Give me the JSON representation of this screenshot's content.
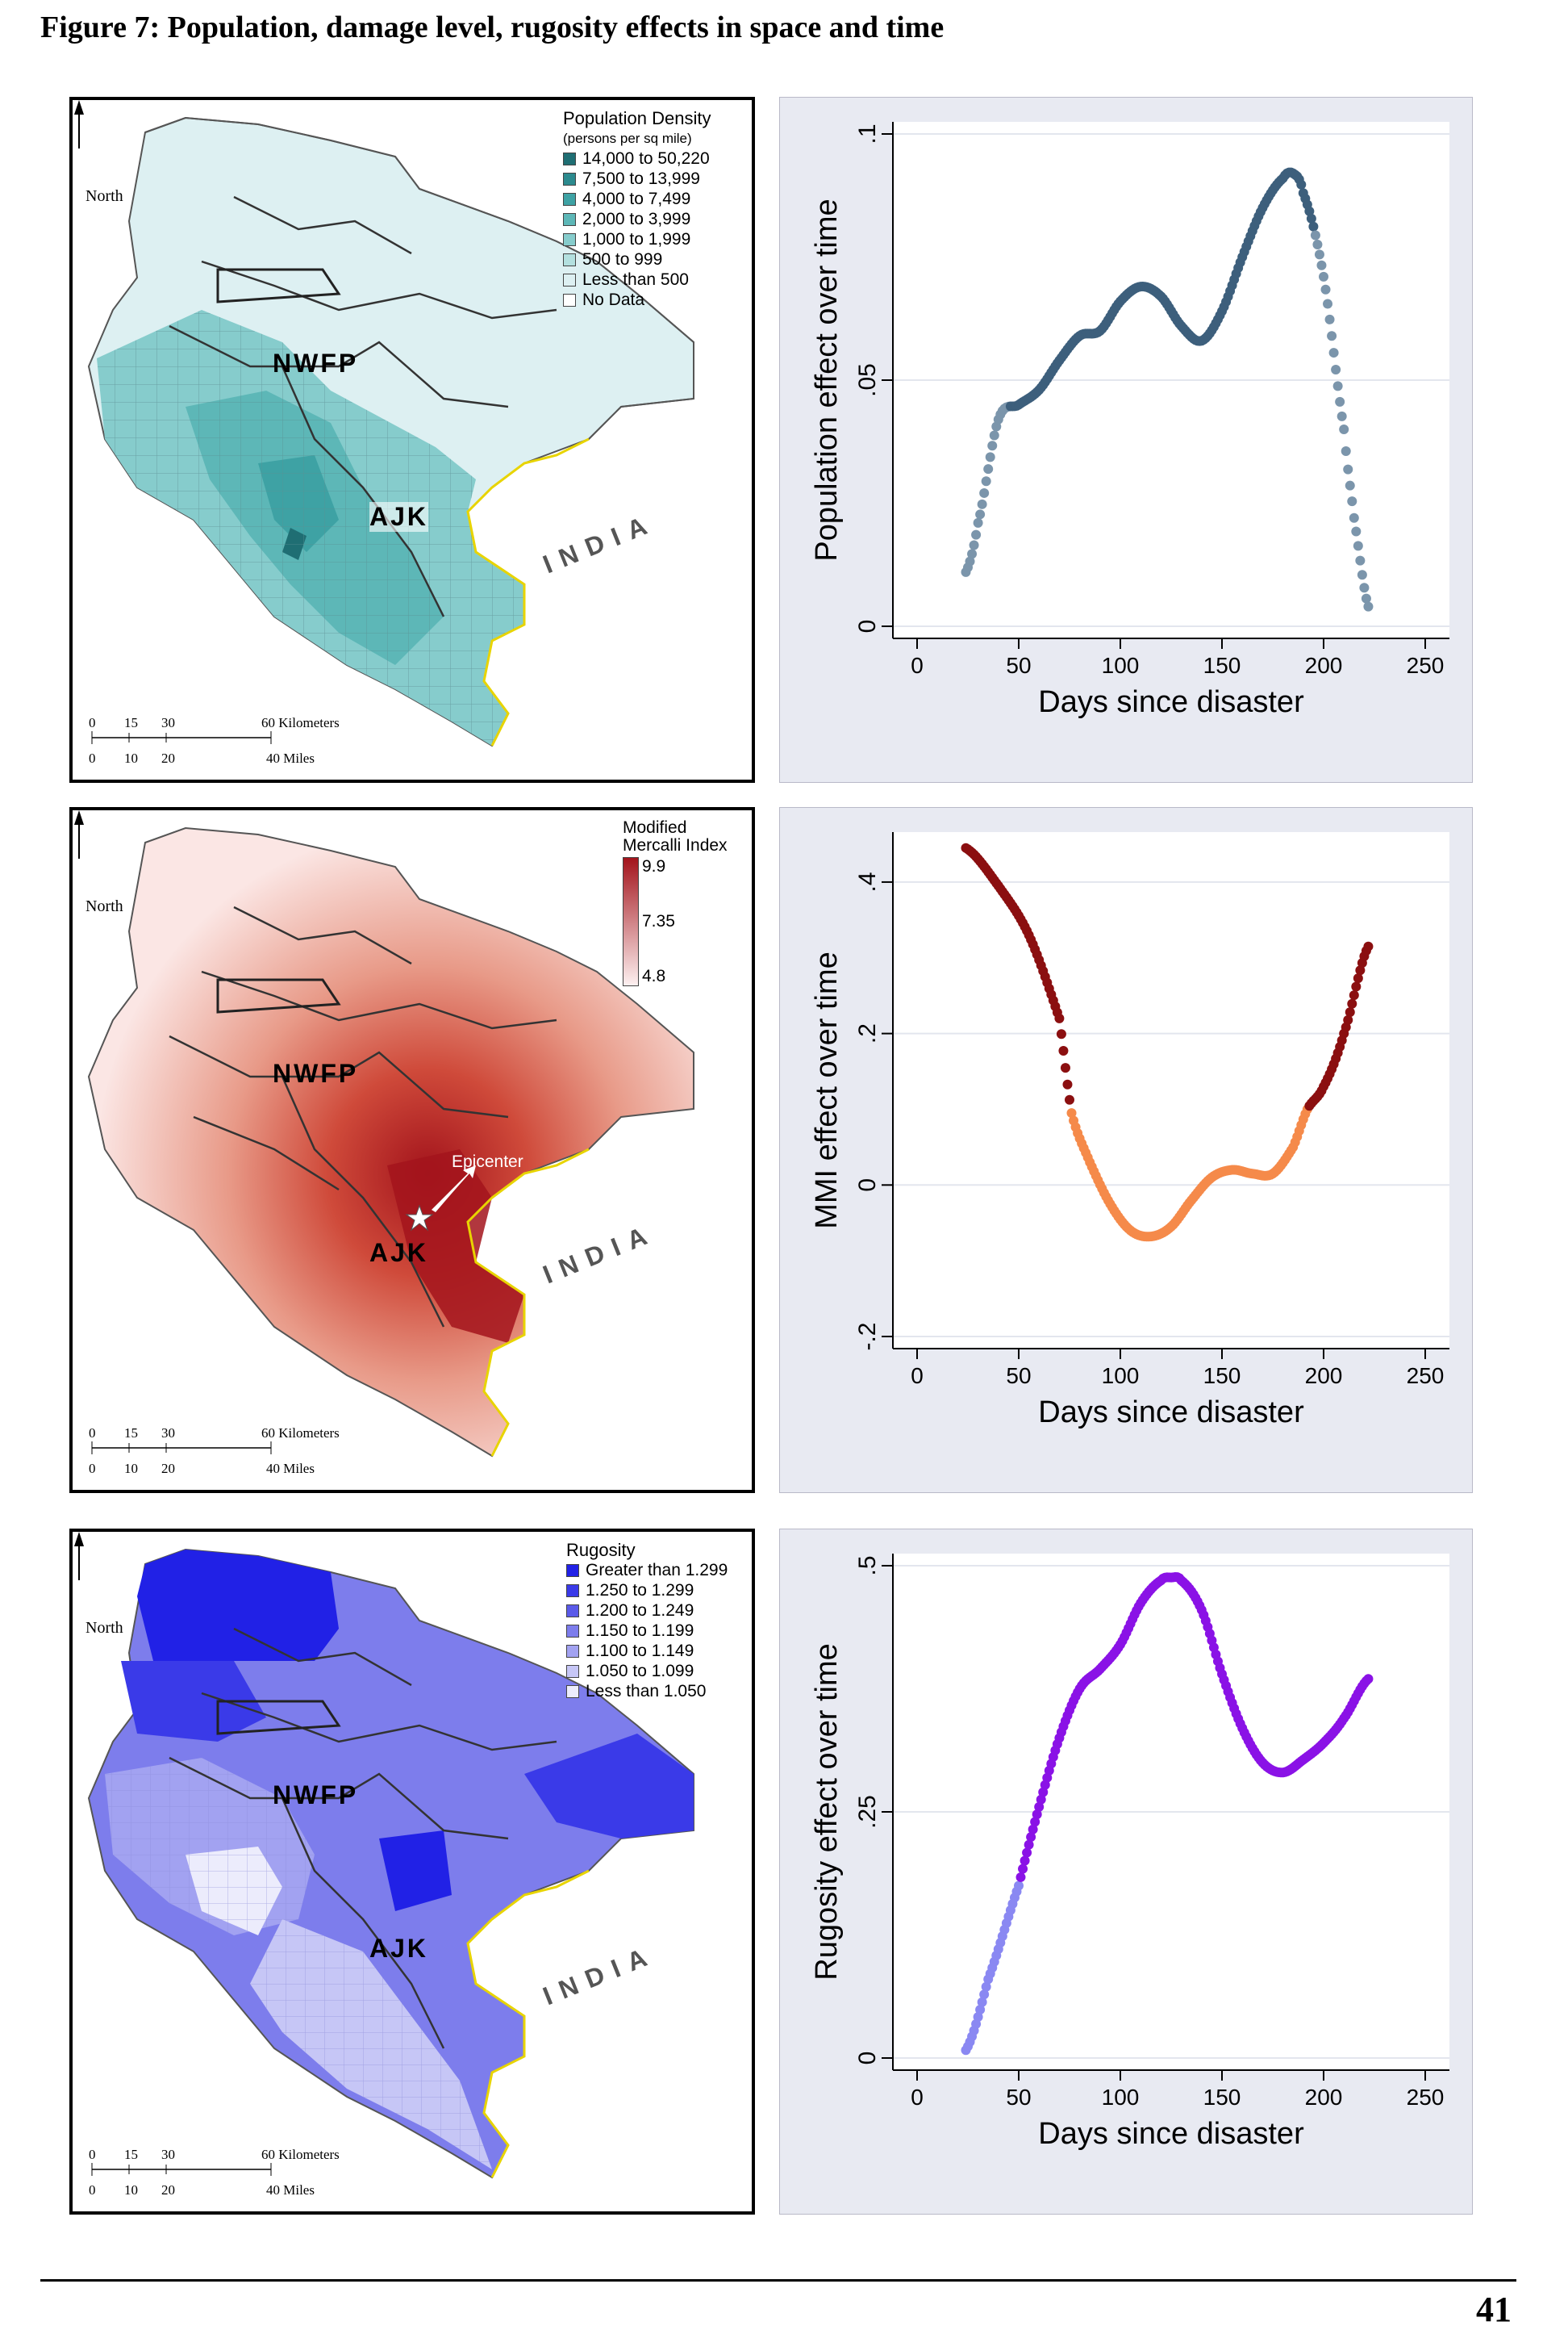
{
  "figure_title": "Figure 7: Population, damage level, rugosity effects in space and time",
  "page_number": "41",
  "maps": {
    "north_label": "North",
    "scale_km": [
      "0",
      "15",
      "30",
      "60 Kilometers"
    ],
    "scale_mi": [
      "0",
      "10",
      "20",
      "40 Miles"
    ],
    "region_labels": {
      "nwfp": "NWFP",
      "ajk": "AJK",
      "india": "INDIA"
    },
    "population": {
      "legend_title": "Population Density",
      "legend_subtitle": "(persons per sq mile)",
      "items": [
        {
          "label": "14,000 to 50,220",
          "color": "#1f6e73"
        },
        {
          "label": "7,500 to 13,999",
          "color": "#2c8a8e"
        },
        {
          "label": "4,000 to 7,499",
          "color": "#3ea2a4"
        },
        {
          "label": "2,000 to 3,999",
          "color": "#5db7b7"
        },
        {
          "label": "1,000 to 1,999",
          "color": "#86cccc"
        },
        {
          "label": "500 to 999",
          "color": "#b3e0df"
        },
        {
          "label": "Less than 500",
          "color": "#ddf0f2"
        },
        {
          "label": "No Data",
          "color": "#ffffff"
        }
      ]
    },
    "mmi": {
      "legend_title_1": "Modified",
      "legend_title_2": "Mercalli Index",
      "max_label": "9.9",
      "mid_label": "7.35",
      "min_label": "4.8",
      "epicenter_label": "Epicenter",
      "max_color": "#a3141c",
      "min_color": "#fdf0f0"
    },
    "rugosity": {
      "legend_title": "Rugosity",
      "items": [
        {
          "label": "Greater than 1.299",
          "color": "#2121e6"
        },
        {
          "label": "1.250 to 1.299",
          "color": "#3a3ae8"
        },
        {
          "label": "1.200 to 1.249",
          "color": "#5a5ae9"
        },
        {
          "label": "1.150 to 1.199",
          "color": "#7d7dec"
        },
        {
          "label": "1.100 to 1.149",
          "color": "#a2a2f1"
        },
        {
          "label": "1.050 to 1.099",
          "color": "#c6c6f6"
        },
        {
          "label": "Less than 1.050",
          "color": "#ececfc"
        }
      ]
    }
  },
  "chart_data": [
    {
      "type": "scatter",
      "xlabel": "Days since disaster",
      "ylabel": "Population effect over time",
      "xlim": [
        0,
        250
      ],
      "ylim": [
        0,
        0.1
      ],
      "xticks": [
        "0",
        "50",
        "100",
        "150",
        "200",
        "250"
      ],
      "yticks": [
        {
          "v": 0,
          "label": "0"
        },
        {
          "v": 0.05,
          "label": ".05"
        },
        {
          "v": 0.1,
          "label": ".1"
        }
      ],
      "grid": true,
      "colors": {
        "dark": "#3d5f7c",
        "light": "#7b95ab"
      },
      "x": [
        24,
        30,
        40,
        50,
        60,
        70,
        80,
        90,
        100,
        110,
        120,
        130,
        140,
        150,
        160,
        170,
        180,
        185,
        190,
        200,
        210,
        215,
        222
      ],
      "y": [
        0.011,
        0.021,
        0.042,
        0.045,
        0.048,
        0.054,
        0.059,
        0.06,
        0.066,
        0.069,
        0.067,
        0.061,
        0.058,
        0.064,
        0.075,
        0.085,
        0.091,
        0.092,
        0.088,
        0.071,
        0.04,
        0.022,
        0.004
      ],
      "light_ranges": [
        [
          24,
          45
        ],
        [
          196,
          222
        ]
      ]
    },
    {
      "type": "scatter",
      "xlabel": "Days since disaster",
      "ylabel": "MMI effect over time",
      "xlim": [
        0,
        250
      ],
      "ylim": [
        -0.2,
        0.45
      ],
      "xticks": [
        "0",
        "50",
        "100",
        "150",
        "200",
        "250"
      ],
      "yticks": [
        {
          "v": -0.2,
          "label": "-.2"
        },
        {
          "v": 0,
          "label": "0"
        },
        {
          "v": 0.2,
          "label": ".2"
        },
        {
          "v": 0.4,
          "label": ".4"
        }
      ],
      "grid": true,
      "colors": {
        "dark": "#8b0f10",
        "light": "#f58a4a"
      },
      "x": [
        24,
        40,
        55,
        70,
        76,
        85,
        95,
        105,
        115,
        125,
        135,
        145,
        155,
        165,
        175,
        185,
        192,
        200,
        210,
        222
      ],
      "y": [
        0.445,
        0.395,
        0.33,
        0.22,
        0.095,
        0.03,
        -0.025,
        -0.06,
        -0.068,
        -0.055,
        -0.02,
        0.01,
        0.02,
        0.015,
        0.015,
        0.05,
        0.1,
        0.13,
        0.2,
        0.315
      ],
      "light_ranges": [
        [
          76,
          192
        ]
      ]
    },
    {
      "type": "scatter",
      "xlabel": "Days since disaster",
      "ylabel": "Rugosity effect over time",
      "xlim": [
        0,
        250
      ],
      "ylim": [
        0,
        0.5
      ],
      "xticks": [
        "0",
        "50",
        "100",
        "150",
        "200",
        "250"
      ],
      "yticks": [
        {
          "v": 0,
          "label": "0"
        },
        {
          "v": 0.25,
          "label": ".25"
        },
        {
          "v": 0.5,
          "label": ".5"
        }
      ],
      "grid": true,
      "colors": {
        "dark": "#8a12e6",
        "light": "#8a88f2"
      },
      "x": [
        24,
        35,
        50,
        60,
        70,
        80,
        90,
        100,
        110,
        120,
        125,
        130,
        140,
        150,
        160,
        170,
        180,
        190,
        200,
        210,
        222
      ],
      "y": [
        0.008,
        0.08,
        0.175,
        0.255,
        0.325,
        0.375,
        0.395,
        0.42,
        0.462,
        0.485,
        0.488,
        0.485,
        0.455,
        0.39,
        0.335,
        0.3,
        0.29,
        0.303,
        0.32,
        0.345,
        0.385
      ],
      "light_ranges": [
        [
          24,
          50
        ]
      ]
    }
  ]
}
